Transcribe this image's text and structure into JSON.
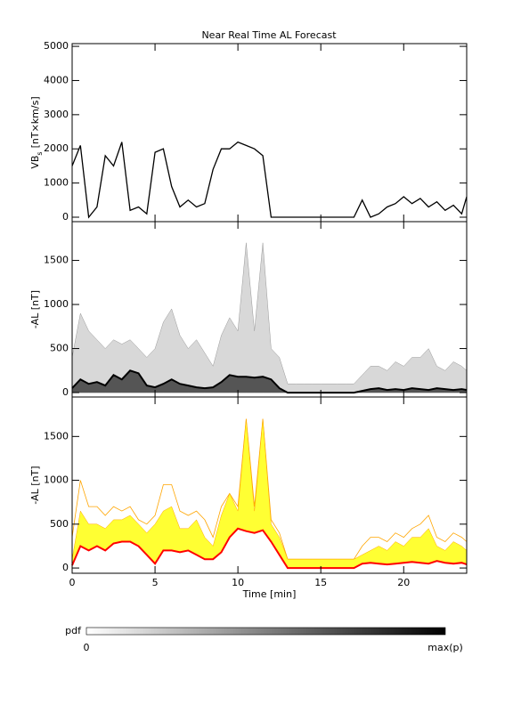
{
  "chart_data": [
    {
      "type": "line",
      "title": "Near Real Time AL Forecast",
      "ylabel": {
        "main": "VB",
        "sub": "s",
        "rest": "[nT×km/s]"
      },
      "x": [
        0,
        0.5,
        1,
        1.5,
        2,
        2.5,
        3,
        3.5,
        4,
        4.5,
        5,
        5.5,
        6,
        6.5,
        7,
        7.5,
        8,
        8.5,
        9,
        9.5,
        10,
        10.5,
        11,
        11.5,
        12,
        12.5,
        13,
        13.5,
        14,
        14.5,
        15,
        15.5,
        16,
        16.5,
        17,
        17.5,
        18,
        18.5,
        19,
        19.5,
        20,
        20.5,
        21,
        21.5,
        22,
        22.5,
        23,
        23.5,
        23.8
      ],
      "values": [
        1500,
        2100,
        0,
        300,
        1800,
        1500,
        2200,
        200,
        300,
        100,
        1900,
        2000,
        900,
        300,
        500,
        300,
        400,
        1400,
        2000,
        2000,
        2200,
        2100,
        2000,
        1800,
        0,
        0,
        0,
        0,
        0,
        0,
        0,
        0,
        0,
        0,
        0,
        500,
        0,
        100,
        300,
        400,
        600,
        400,
        550,
        300,
        450,
        200,
        350,
        100,
        600
      ],
      "color": "#000000",
      "xlim": [
        0,
        23.8
      ],
      "xticks": [
        0,
        5,
        10,
        15,
        20
      ],
      "ylim": [
        -130,
        5080
      ],
      "yticks": [
        0,
        1000,
        2000,
        3000,
        4000,
        5000
      ]
    },
    {
      "type": "density",
      "ylabel": "-AL [nT]",
      "x": [
        0,
        0.5,
        1,
        1.5,
        2,
        2.5,
        3,
        3.5,
        4,
        4.5,
        5,
        5.5,
        6,
        6.5,
        7,
        7.5,
        8,
        8.5,
        9,
        9.5,
        10,
        10.5,
        11,
        11.5,
        12,
        12.5,
        13,
        13.5,
        14,
        14.5,
        15,
        15.5,
        16,
        16.5,
        17,
        17.5,
        18,
        18.5,
        19,
        19.5,
        20,
        20.5,
        21,
        21.5,
        22,
        22.5,
        23,
        23.5,
        23.8
      ],
      "median": [
        50,
        150,
        100,
        120,
        80,
        200,
        150,
        250,
        220,
        80,
        60,
        100,
        150,
        100,
        80,
        60,
        50,
        60,
        120,
        200,
        180,
        180,
        170,
        180,
        150,
        50,
        0,
        0,
        0,
        0,
        0,
        0,
        0,
        0,
        0,
        20,
        40,
        50,
        30,
        40,
        30,
        50,
        40,
        30,
        50,
        40,
        30,
        40,
        30
      ],
      "upper": [
        400,
        900,
        700,
        600,
        500,
        600,
        550,
        600,
        500,
        400,
        500,
        800,
        950,
        650,
        500,
        600,
        450,
        300,
        650,
        850,
        700,
        1700,
        700,
        1700,
        500,
        400,
        100,
        100,
        100,
        100,
        100,
        100,
        100,
        100,
        100,
        200,
        300,
        300,
        250,
        350,
        300,
        400,
        400,
        500,
        300,
        250,
        350,
        300,
        250
      ],
      "upper_color": "#d8d8d8",
      "median_color": "#000000",
      "xlim": [
        0,
        23.8
      ],
      "xticks": [
        0,
        5,
        10,
        15,
        20
      ],
      "ylim": [
        -50,
        1940
      ],
      "yticks": [
        0,
        500,
        1000,
        1500
      ]
    },
    {
      "type": "band",
      "ylabel": "-AL [nT]",
      "xlabel": "Time [min]",
      "x": [
        0,
        0.5,
        1,
        1.5,
        2,
        2.5,
        3,
        3.5,
        4,
        4.5,
        5,
        5.5,
        6,
        6.5,
        7,
        7.5,
        8,
        8.5,
        9,
        9.5,
        10,
        10.5,
        11,
        11.5,
        12,
        12.5,
        13,
        13.5,
        14,
        14.5,
        15,
        15.5,
        16,
        16.5,
        17,
        17.5,
        18,
        18.5,
        19,
        19.5,
        20,
        20.5,
        21,
        21.5,
        22,
        22.5,
        23,
        23.5,
        23.8
      ],
      "median": [
        30,
        250,
        200,
        250,
        200,
        280,
        300,
        300,
        250,
        150,
        50,
        200,
        200,
        180,
        200,
        150,
        100,
        100,
        180,
        350,
        450,
        420,
        400,
        430,
        300,
        150,
        0,
        0,
        0,
        0,
        0,
        0,
        0,
        0,
        0,
        50,
        60,
        50,
        40,
        50,
        60,
        70,
        60,
        50,
        80,
        60,
        50,
        60,
        40
      ],
      "upper": [
        100,
        650,
        500,
        500,
        450,
        550,
        550,
        600,
        500,
        400,
        500,
        650,
        700,
        450,
        450,
        550,
        350,
        250,
        600,
        850,
        650,
        1700,
        650,
        1700,
        500,
        350,
        100,
        100,
        100,
        100,
        100,
        100,
        100,
        100,
        100,
        150,
        200,
        250,
        200,
        300,
        250,
        350,
        350,
        450,
        250,
        200,
        300,
        250,
        200
      ],
      "max": [
        350,
        1000,
        700,
        700,
        600,
        700,
        650,
        700,
        550,
        500,
        600,
        950,
        950,
        650,
        600,
        650,
        550,
        350,
        700,
        850,
        700,
        1700,
        700,
        1700,
        550,
        400,
        100,
        100,
        100,
        100,
        100,
        100,
        100,
        100,
        100,
        250,
        350,
        350,
        300,
        400,
        350,
        450,
        500,
        600,
        350,
        300,
        400,
        350,
        300
      ],
      "median_color": "#ff0000",
      "upper_color": "#ffff33",
      "max_color": "#ffa500",
      "xlim": [
        0,
        23.8
      ],
      "xticks": [
        0,
        5,
        10,
        15,
        20
      ],
      "ylim": [
        -60,
        1950
      ],
      "yticks": [
        0,
        500,
        1000,
        1500
      ]
    }
  ],
  "colorbar": {
    "label": "pdf",
    "min_label": "0",
    "max_label": "max(p)"
  }
}
